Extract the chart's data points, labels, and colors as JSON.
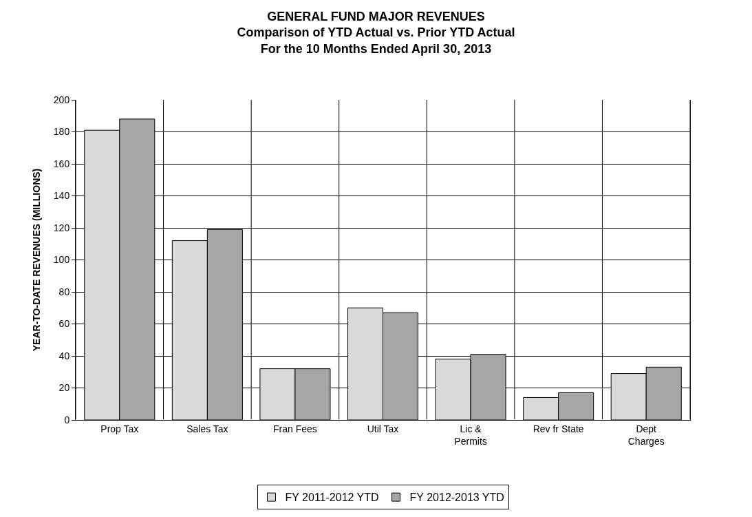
{
  "chart_data": {
    "type": "bar",
    "title": "GENERAL FUND MAJOR REVENUES\nComparison of YTD Actual vs. Prior YTD Actual\nFor the 10 Months Ended April 30, 2013",
    "ylabel": "YEAR-TO-DATE REVENUES (MILLIONS)",
    "categories": [
      "Prop Tax",
      "Sales Tax",
      "Fran Fees",
      "Util Tax",
      "Lic &\nPermits",
      "Rev fr State",
      "Dept\nCharges"
    ],
    "series": [
      {
        "name": "FY 2011-2012 YTD",
        "color": "#d9d9d9",
        "values": [
          181,
          112,
          32,
          70,
          38,
          14,
          29
        ]
      },
      {
        "name": "FY 2012-2013 YTD",
        "color": "#a6a6a6",
        "values": [
          188,
          119,
          32,
          67,
          41,
          17,
          33
        ]
      }
    ],
    "ylim": [
      0,
      200
    ],
    "yticks": [
      0,
      20,
      40,
      60,
      80,
      100,
      120,
      140,
      160,
      180,
      200
    ],
    "grid": true,
    "legend": "bottom"
  }
}
